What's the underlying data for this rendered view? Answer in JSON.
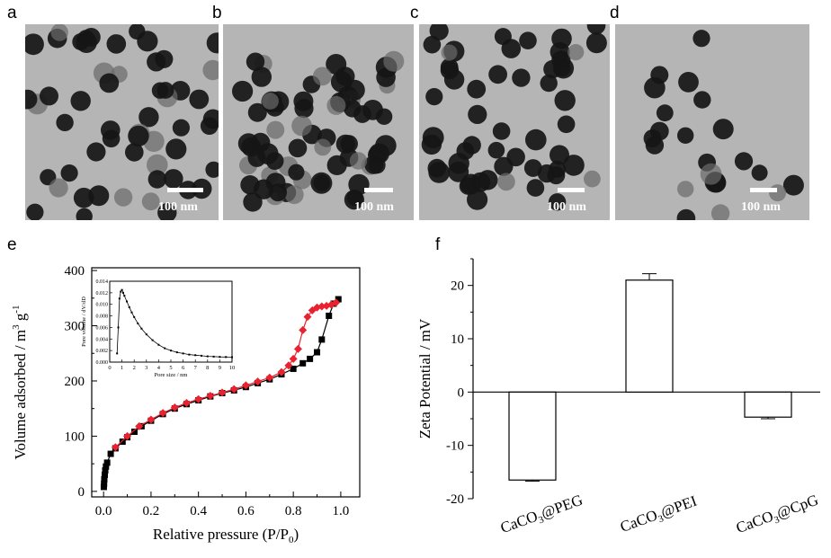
{
  "panels": {
    "a": "a",
    "b": "b",
    "c": "c",
    "d": "d",
    "e": "e",
    "f": "f"
  },
  "scale_bar_label": "100 nm",
  "colors": {
    "adsorption": "#000000",
    "desorption": "#e8232f",
    "tem_background": "#b5b5b5",
    "particle": "#161616"
  },
  "chart_data": [
    {
      "type": "scatter",
      "panel": "e",
      "xlabel": "Relative pressure (P/P0)",
      "xlabel_main": "Relative pressure (P/P",
      "xlabel_sub": "0",
      "xlabel_close": ")",
      "ylabel": "Volume adsorbed / m3 g-1",
      "ylabel_parts": [
        "Volume adsorbed / m",
        "3",
        " g",
        "-1"
      ],
      "xlim": [
        -0.05,
        1.08
      ],
      "ylim": [
        -10,
        405
      ],
      "xticks": [
        "0.0",
        "0.2",
        "0.4",
        "0.6",
        "0.8",
        "1.0"
      ],
      "yticks": [
        "0",
        "100",
        "200",
        "300",
        "400"
      ],
      "series": [
        {
          "color": "#000000",
          "marker": "square",
          "x": [
            0.001,
            0.002,
            0.003,
            0.005,
            0.007,
            0.01,
            0.015,
            0.03,
            0.05,
            0.08,
            0.1,
            0.13,
            0.16,
            0.2,
            0.25,
            0.3,
            0.35,
            0.4,
            0.45,
            0.5,
            0.55,
            0.6,
            0.65,
            0.7,
            0.75,
            0.8,
            0.84,
            0.87,
            0.9,
            0.92,
            0.95,
            0.97,
            0.99
          ],
          "y": [
            8,
            14,
            22,
            30,
            38,
            45,
            52,
            68,
            78,
            90,
            98,
            108,
            118,
            128,
            140,
            150,
            158,
            165,
            172,
            178,
            183,
            189,
            196,
            203,
            212,
            222,
            232,
            240,
            252,
            275,
            318,
            340,
            348
          ]
        },
        {
          "color": "#e8232f",
          "marker": "diamond",
          "x": [
            0.05,
            0.1,
            0.15,
            0.2,
            0.25,
            0.3,
            0.35,
            0.4,
            0.45,
            0.5,
            0.55,
            0.6,
            0.65,
            0.7,
            0.75,
            0.78,
            0.8,
            0.82,
            0.84,
            0.86,
            0.88,
            0.9,
            0.92,
            0.94,
            0.96,
            0.98
          ],
          "y": [
            80,
            100,
            118,
            130,
            142,
            152,
            160,
            167,
            173,
            179,
            185,
            192,
            199,
            206,
            216,
            228,
            240,
            258,
            292,
            316,
            328,
            333,
            335,
            336,
            338,
            342
          ]
        }
      ],
      "inset": {
        "type": "line",
        "xlabel": "Pore size / nm",
        "ylabel": "Pore volume / dV/dD",
        "xlim": [
          0,
          10
        ],
        "ylim": [
          0,
          0.014
        ],
        "xticks": [
          "0",
          "1",
          "2",
          "3",
          "4",
          "5",
          "6",
          "7",
          "8",
          "9",
          "10"
        ],
        "yticks": [
          "0.000",
          "0.002",
          "0.004",
          "0.006",
          "0.008",
          "0.010",
          "0.012",
          "0.014"
        ],
        "x": [
          0.6,
          0.7,
          0.8,
          0.9,
          1.0,
          1.1,
          1.2,
          1.4,
          1.6,
          1.8,
          2.0,
          2.3,
          2.6,
          3.0,
          3.5,
          4.0,
          4.5,
          5.0,
          5.5,
          6.0,
          6.5,
          7.0,
          7.5,
          8.0,
          8.5,
          9.0,
          9.5,
          10.0
        ],
        "y": [
          0.0015,
          0.006,
          0.011,
          0.0122,
          0.0125,
          0.012,
          0.0115,
          0.0105,
          0.0095,
          0.0086,
          0.0078,
          0.0067,
          0.0058,
          0.0048,
          0.0038,
          0.003,
          0.0024,
          0.002,
          0.0017,
          0.0015,
          0.0013,
          0.0012,
          0.0011,
          0.001,
          0.00095,
          0.0009,
          0.00088,
          0.00085
        ]
      }
    },
    {
      "type": "bar",
      "panel": "f",
      "ylabel": "Zeta Potential / mV",
      "ylim": [
        -20,
        25
      ],
      "yticks": [
        "-20",
        "-10",
        "0",
        "10",
        "20"
      ],
      "categories": [
        "CaCO3@PEG",
        "CaCO3@PEI",
        "CaCO3@CpG"
      ],
      "category_parts": [
        [
          "CaCO",
          "3",
          "@PEG"
        ],
        [
          "CaCO",
          "3",
          "@PEI"
        ],
        [
          "CaCO",
          "3",
          "@CpG"
        ]
      ],
      "values": [
        -16.5,
        21.0,
        -4.7
      ],
      "errors": [
        0.2,
        1.2,
        0.3
      ]
    }
  ]
}
